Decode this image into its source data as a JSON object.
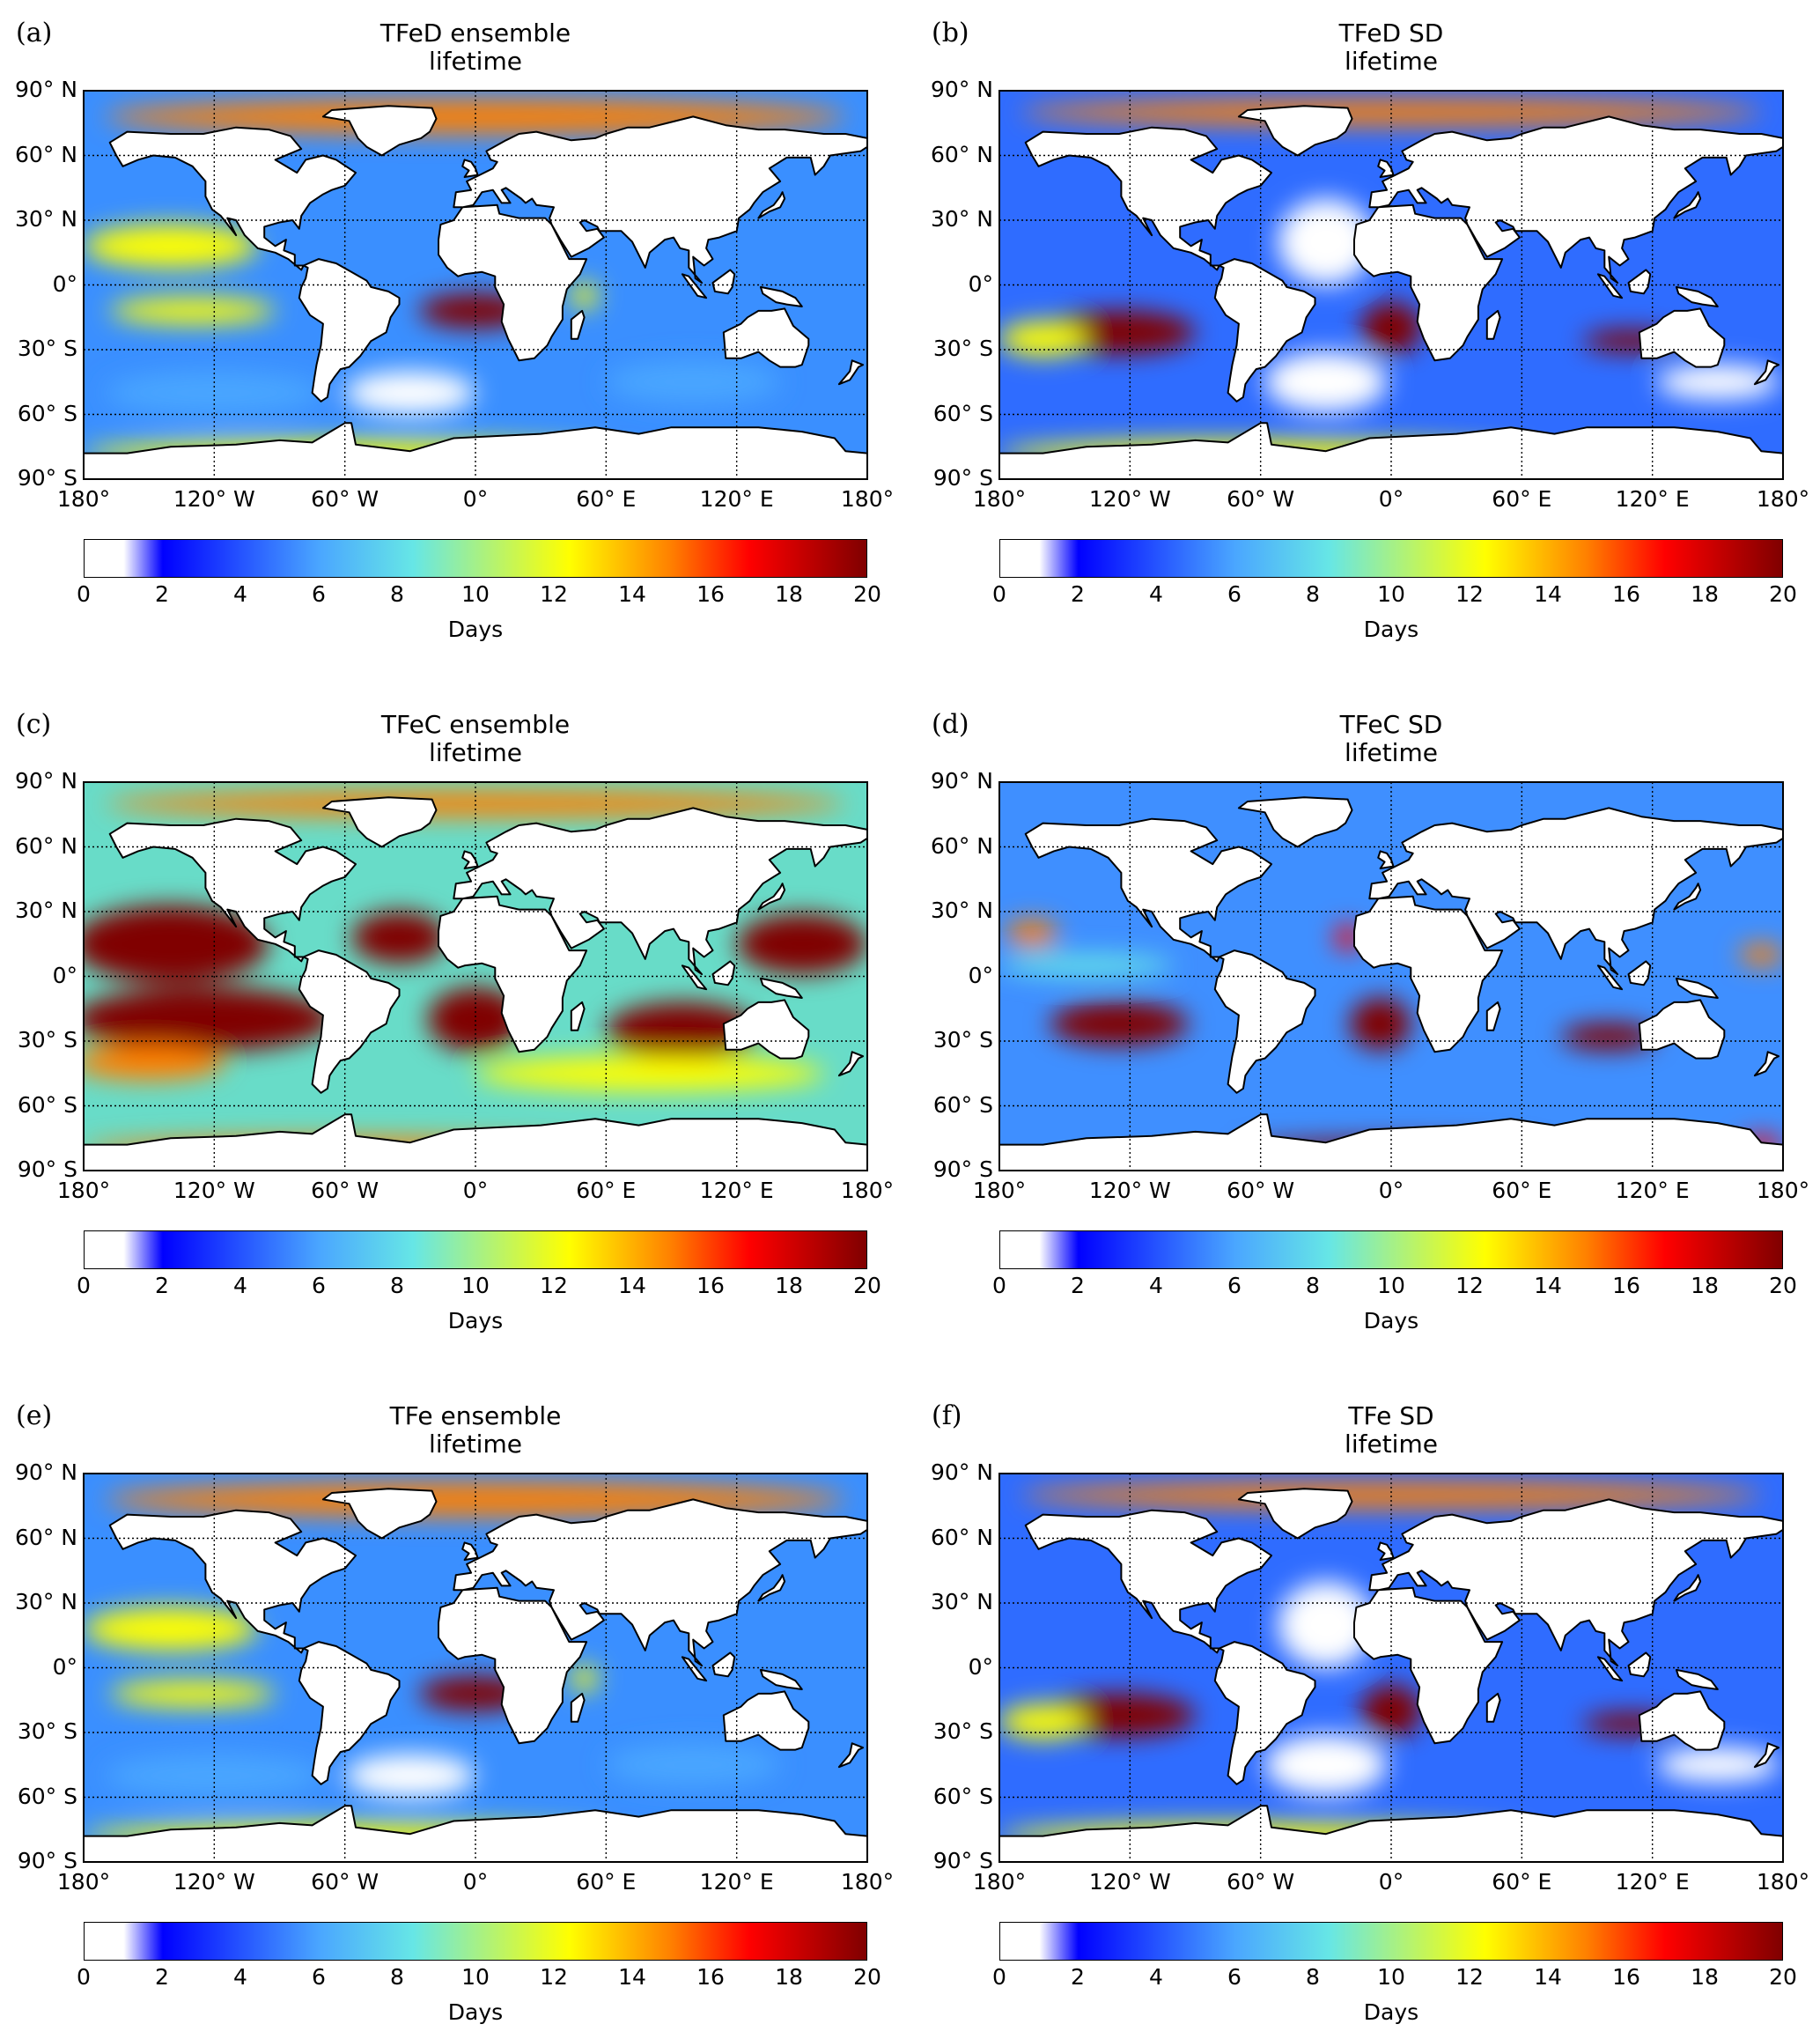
{
  "panels": [
    {
      "id": "a",
      "label": "(a)",
      "title_line1": "TFeD ensemble",
      "title_line2": "lifetime",
      "kind": "ens_d"
    },
    {
      "id": "b",
      "label": "(b)",
      "title_line1": "TFeD SD",
      "title_line2": "lifetime",
      "kind": "sd_d"
    },
    {
      "id": "c",
      "label": "(c)",
      "title_line1": "TFeC ensemble",
      "title_line2": "lifetime",
      "kind": "ens_c"
    },
    {
      "id": "d",
      "label": "(d)",
      "title_line1": "TFeC SD",
      "title_line2": "lifetime",
      "kind": "sd_c"
    },
    {
      "id": "e",
      "label": "(e)",
      "title_line1": "TFe ensemble",
      "title_line2": "lifetime",
      "kind": "ens_d"
    },
    {
      "id": "f",
      "label": "(f)",
      "title_line1": "TFe SD",
      "title_line2": "lifetime",
      "kind": "sd_d"
    }
  ],
  "lat_labels": [
    "90° N",
    "60° N",
    "30° N",
    "0°",
    "30° S",
    "60° S",
    "90° S"
  ],
  "lon_labels": [
    "180°",
    "120° W",
    "60° W",
    "0°",
    "60° E",
    "120° E",
    "180°"
  ],
  "colorbar": {
    "ticks": [
      "0",
      "2",
      "4",
      "6",
      "8",
      "10",
      "12",
      "14",
      "16",
      "18",
      "20"
    ],
    "label": "Days",
    "range": [
      0,
      20
    ],
    "colors": [
      "#ffffff",
      "#0000ff",
      "#4aa6ff",
      "#66e6e6",
      "#ffff00",
      "#ff8000",
      "#ff0000",
      "#800000"
    ]
  },
  "map_colors": {
    "ocean_default": "#3a8fff",
    "land": "#ffffff",
    "coast": "#000000"
  }
}
